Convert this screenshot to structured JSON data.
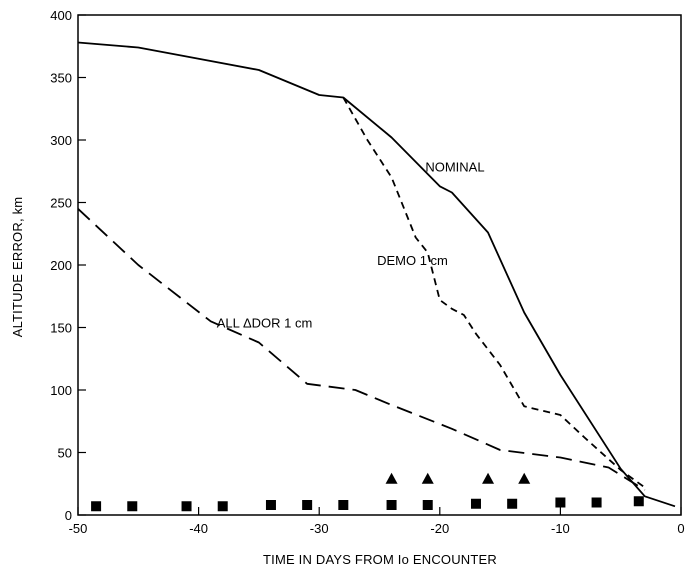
{
  "chart_data": {
    "type": "line",
    "xlabel": "TIME IN DAYS FROM Io ENCOUNTER",
    "ylabel": "ALTITUDE ERROR, km",
    "xlim": [
      -50,
      0
    ],
    "ylim": [
      0,
      400
    ],
    "xticks": [
      -50,
      -40,
      -30,
      -20,
      -10,
      0
    ],
    "yticks": [
      0,
      50,
      100,
      150,
      200,
      250,
      300,
      350,
      400
    ],
    "grid": false,
    "series": [
      {
        "name": "NOMINAL",
        "style": "solid",
        "x": [
          -50,
          -45,
          -40,
          -35,
          -30,
          -28,
          -24,
          -20,
          -19,
          -16,
          -13,
          -10,
          -5,
          -3,
          -0.5
        ],
        "y": [
          378,
          374,
          365,
          356,
          336,
          334,
          302,
          263,
          258,
          226,
          162,
          112,
          37,
          15,
          7
        ]
      },
      {
        "name": "DEMO 1 cm",
        "style": "dashed",
        "x": [
          -28,
          -26,
          -24,
          -22,
          -21,
          -20,
          -19,
          -18,
          -17,
          -15,
          -13,
          -10,
          -8,
          -5,
          -3
        ],
        "y": [
          334,
          300,
          270,
          222,
          210,
          172,
          165,
          160,
          145,
          120,
          87,
          80,
          62,
          36,
          22
        ]
      },
      {
        "name": "ALL ΔDOR 1 cm",
        "style": "long-dashed",
        "x": [
          -50,
          -45,
          -39,
          -35,
          -31,
          -27,
          -24,
          -19,
          -15,
          -10,
          -6,
          -3
        ],
        "y": [
          245,
          200,
          155,
          138,
          105,
          100,
          88,
          69,
          52,
          46,
          38,
          20
        ]
      }
    ],
    "markers": [
      {
        "shape": "square",
        "x": [
          -48.5,
          -45.5,
          -41,
          -38,
          -34,
          -31,
          -28,
          -24,
          -21,
          -17,
          -14,
          -10,
          -7,
          -3.5
        ],
        "y": [
          7,
          7,
          7,
          7,
          8,
          8,
          8,
          8,
          8,
          9,
          9,
          10,
          10,
          11
        ]
      },
      {
        "shape": "triangle",
        "x": [
          -24,
          -21,
          -16,
          -13
        ],
        "y": [
          29,
          29,
          29,
          29
        ]
      }
    ],
    "annotations": [
      {
        "text": "NOMINAL",
        "x": -21.2,
        "y": 275
      },
      {
        "text": "DEMO 1 cm",
        "x": -25.2,
        "y": 200
      },
      {
        "text": "ALL ΔDOR 1 cm",
        "x": -38.5,
        "y": 150
      }
    ]
  }
}
